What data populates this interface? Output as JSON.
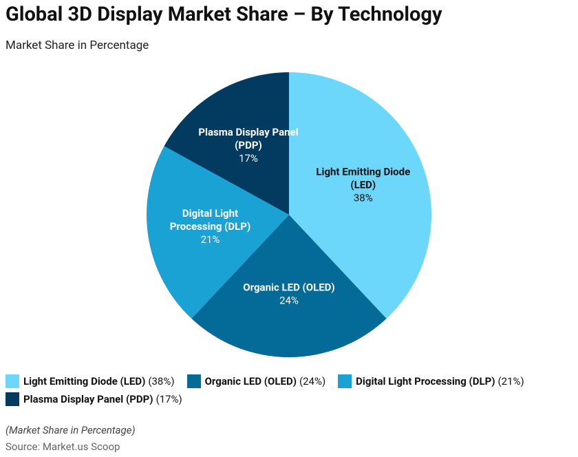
{
  "chart_data": {
    "type": "pie",
    "title": "Global 3D Display Market Share – By Technology",
    "subtitle": "Market Share in Percentage",
    "categories": [
      "Light Emitting Diode (LED)",
      "Organic LED (OLED)",
      "Digital Light Processing (DLP)",
      "Plasma Display Panel (PDP)"
    ],
    "values": [
      38,
      24,
      21,
      17
    ],
    "value_labels": [
      "38%",
      "24%",
      "21%",
      "17%"
    ],
    "legend_value_labels": [
      "(38%)",
      "(24%)",
      "(21%)",
      "(17%)"
    ],
    "colors": [
      "#6dd6fb",
      "#046b98",
      "#1ba2d5",
      "#033a5f"
    ],
    "label_colors": [
      "#111111",
      "#ffffff",
      "#ffffff",
      "#ffffff"
    ],
    "legend": "bottom",
    "note": "(Market Share in Percentage)",
    "source": "Source: Market.us Scoop"
  }
}
